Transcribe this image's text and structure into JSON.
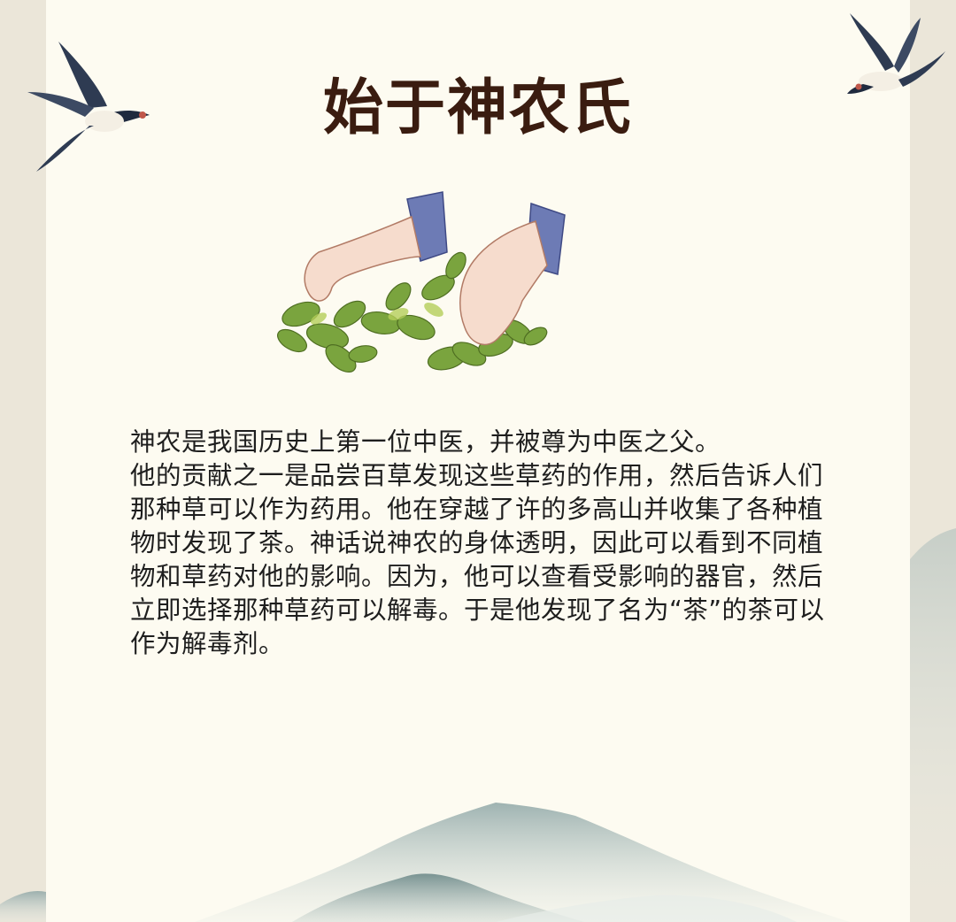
{
  "title": "始于神农氏",
  "paragraphs": [
    "神农是我国历史上第一位中医，并被尊为中医之父。",
    "他的贡献之一是品尝百草发现这些草药的作用，然后告诉人们那种草可以作为药用。他在穿越了许的多高山并收集了各种植物时发现了茶。神话说神农的身体透明，因此可以看到不同植物和草药对他的影响。因为，他可以查看受影响的器官，然后立即选择那种草药可以解毒。于是他发现了名为“茶”的茶可以作为解毒剂。"
  ],
  "colors": {
    "title": "#3a1c10",
    "paper": "#fdfbf1",
    "mountain": "#7f9a9a",
    "sleeve": "#6d7bb5",
    "leaf": "#7aa43e"
  },
  "icons": [
    "swallow-left",
    "swallow-right",
    "hands-picking-tea",
    "mountains"
  ]
}
